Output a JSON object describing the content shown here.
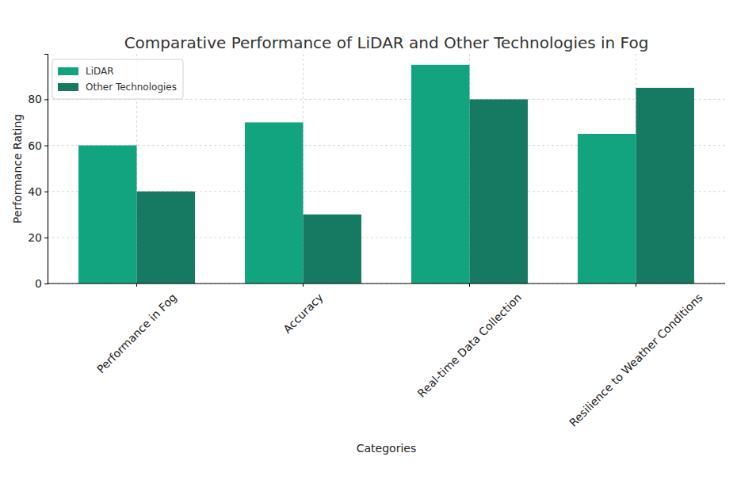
{
  "chart_data": {
    "type": "bar",
    "title": "Comparative Performance of LiDAR and Other Technologies in Fog",
    "x_label": "Categories",
    "y_label": "Performance Rating",
    "categories": [
      "Performance in Fog",
      "Accuracy",
      "Real-time Data Collection",
      "Resilience to Weather Conditions"
    ],
    "series": [
      {
        "name": "LiDAR",
        "color": "#12a37f",
        "values": [
          60,
          70,
          95,
          65
        ]
      },
      {
        "name": "Other Technologies",
        "color": "#167a62",
        "values": [
          40,
          30,
          80,
          85
        ]
      }
    ],
    "ylim": [
      0,
      99.75
    ],
    "yticks": [
      0,
      20,
      40,
      60,
      80
    ],
    "grid": true,
    "legend": "upper left"
  }
}
